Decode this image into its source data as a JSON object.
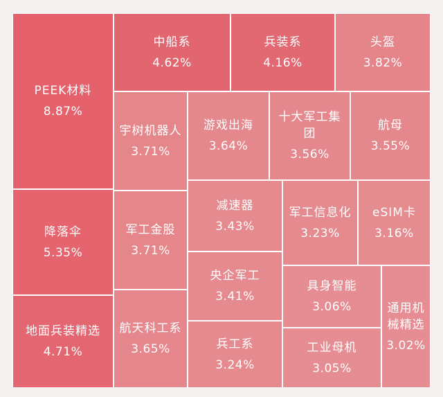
{
  "chart_data": {
    "type": "treemap",
    "items": [
      {
        "name": "PEEK材料",
        "value_label": "8.87%",
        "value": 8.87,
        "color": "#e5626c"
      },
      {
        "name": "降落伞",
        "value_label": "5.35%",
        "value": 5.35,
        "color": "#e5646e"
      },
      {
        "name": "地面兵装精选",
        "value_label": "4.71%",
        "value": 4.71,
        "color": "#e46670"
      },
      {
        "name": "中船系",
        "value_label": "4.62%",
        "value": 4.62,
        "color": "#e26670"
      },
      {
        "name": "兵装系",
        "value_label": "4.16%",
        "value": 4.16,
        "color": "#e26872"
      },
      {
        "name": "头盔",
        "value_label": "3.82%",
        "value": 3.82,
        "color": "#e58489"
      },
      {
        "name": "宇树机器人",
        "value_label": "3.71%",
        "value": 3.71,
        "color": "#e5868b"
      },
      {
        "name": "游戏出海",
        "value_label": "3.64%",
        "value": 3.64,
        "color": "#e5888d"
      },
      {
        "name": "十大军工集\n团",
        "value_label": "3.56%",
        "value": 3.56,
        "color": "#e5888d"
      },
      {
        "name": "航母",
        "value_label": "3.55%",
        "value": 3.55,
        "color": "#e5888d"
      },
      {
        "name": "军工金股",
        "value_label": "3.71%",
        "value": 3.71,
        "color": "#e5868b"
      },
      {
        "name": "减速器",
        "value_label": "3.43%",
        "value": 3.43,
        "color": "#e58a8f"
      },
      {
        "name": "军工信息化",
        "value_label": "3.23%",
        "value": 3.23,
        "color": "#e58b90"
      },
      {
        "name": "eSIM卡",
        "value_label": "3.16%",
        "value": 3.16,
        "color": "#e58c91"
      },
      {
        "name": "央企军工",
        "value_label": "3.41%",
        "value": 3.41,
        "color": "#e58a8f"
      },
      {
        "name": "具身智能",
        "value_label": "3.06%",
        "value": 3.06,
        "color": "#e58d92"
      },
      {
        "name": "通用机\n械精选",
        "value_label": "3.02%",
        "value": 3.02,
        "color": "#e58d92"
      },
      {
        "name": "航天科工系",
        "value_label": "3.65%",
        "value": 3.65,
        "color": "#e5878c"
      },
      {
        "name": "兵工系",
        "value_label": "3.24%",
        "value": 3.24,
        "color": "#e58b90"
      },
      {
        "name": "工业母机",
        "value_label": "3.05%",
        "value": 3.05,
        "color": "#e58d92"
      }
    ]
  }
}
